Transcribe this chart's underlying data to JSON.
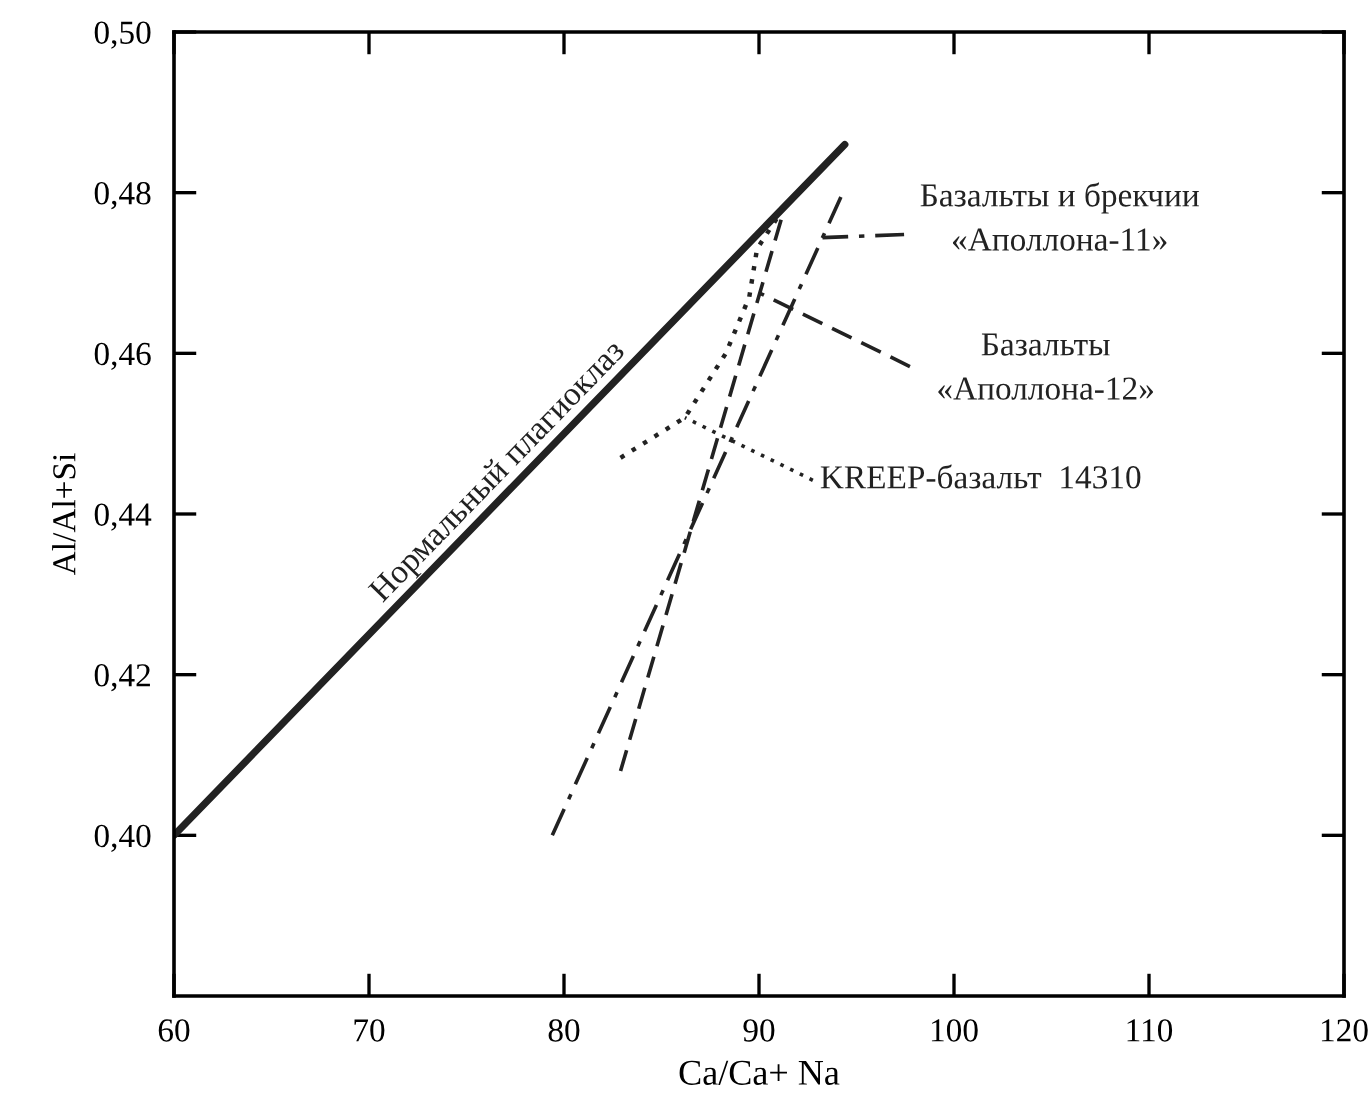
{
  "chart_data": {
    "type": "line",
    "xlabel": "Ca/Ca+ Na",
    "ylabel": "Al/Al+Si",
    "xlim": [
      60,
      120
    ],
    "ylim": [
      0.38,
      0.5
    ],
    "xticks": [
      60,
      70,
      80,
      90,
      100,
      110,
      120
    ],
    "yticks": [
      {
        "value": 0.4,
        "label": "0,40"
      },
      {
        "value": 0.42,
        "label": "0,42"
      },
      {
        "value": 0.44,
        "label": "0,44"
      },
      {
        "value": 0.46,
        "label": "0,46"
      },
      {
        "value": 0.48,
        "label": "0,48"
      },
      {
        "value": 0.5,
        "label": "0,50"
      }
    ],
    "grid": false,
    "legend": "right",
    "marker": "none",
    "series": [
      {
        "name": "Нормальный плагиоклаз",
        "color": "#222222",
        "line_style": "solid",
        "x": [
          60,
          94.4
        ],
        "values": [
          0.4,
          0.486
        ]
      },
      {
        "name": "Базальты и брекчии «Аполлона-11»",
        "color": "#222222",
        "line_style": "dashdot",
        "x": [
          79.4,
          94.3
        ],
        "values": [
          0.4,
          0.48
        ]
      },
      {
        "name": "Базальты «Аполлона-12»",
        "color": "#222222",
        "line_style": "dashed",
        "x": [
          82.9,
          91.3
        ],
        "values": [
          0.408,
          0.478
        ]
      },
      {
        "name": "KREEP-базальт  14310",
        "color": "#222222",
        "line_style": "dotted",
        "x": [
          82.9,
          86.2,
          88.3,
          89.5,
          89.9,
          91.1
        ],
        "values": [
          0.447,
          0.452,
          0.46,
          0.467,
          0.473,
          0.4775
        ]
      }
    ]
  }
}
